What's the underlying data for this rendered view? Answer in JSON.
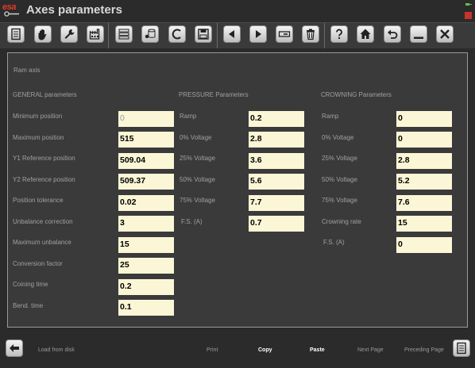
{
  "app": {
    "logo_text": "esa",
    "title": "Axes parameters"
  },
  "toolbar": {
    "buttons": [
      {
        "name": "document-icon"
      },
      {
        "name": "hand-icon"
      },
      {
        "name": "wrench-icon"
      },
      {
        "name": "factory-icon"
      },
      {
        "name": "stack-icon"
      },
      {
        "name": "database-icon"
      },
      {
        "name": "c-icon"
      },
      {
        "name": "save-icon"
      },
      {
        "name": "arrow-left-icon"
      },
      {
        "name": "arrow-right-icon"
      },
      {
        "name": "minus-box-icon"
      },
      {
        "name": "trash-icon"
      },
      {
        "name": "help-icon"
      },
      {
        "name": "home-icon"
      },
      {
        "name": "undo-icon"
      },
      {
        "name": "minimize-icon"
      },
      {
        "name": "close-icon"
      }
    ]
  },
  "panel": {
    "axis_label": "Ram axis",
    "general": {
      "header": "GENERAL parameters",
      "rows": [
        {
          "label": "Minimum position",
          "value": "0"
        },
        {
          "label": "Maximum position",
          "value": "515"
        },
        {
          "label": "Y1 Reference position",
          "value": "509.04"
        },
        {
          "label": "Y2 Reference position",
          "value": "509.37"
        },
        {
          "label": "Position tolerance",
          "value": "0.02"
        },
        {
          "label": "Unbalance correction",
          "value": "3"
        },
        {
          "label": "Maximum unbalance",
          "value": "15"
        },
        {
          "label": "Conversion factor",
          "value": "25"
        },
        {
          "label": "Coining time",
          "value": "0.2"
        },
        {
          "label": "Bend. time",
          "value": "0.1"
        }
      ]
    },
    "pressure": {
      "header": "PRESSURE Parameters",
      "rows": [
        {
          "label": "Ramp",
          "value": "0.2"
        },
        {
          "label": "0% Voltage",
          "value": "2.8"
        },
        {
          "label": "25% Voltage",
          "value": "3.6"
        },
        {
          "label": "50% Voltage",
          "value": "5.6"
        },
        {
          "label": "75% Voltage",
          "value": "7.7"
        },
        {
          "label": "F.S. (A)",
          "value": "0.7"
        }
      ]
    },
    "crowning": {
      "header": "CROWNING Parameters",
      "rows": [
        {
          "label": "Ramp",
          "value": "0"
        },
        {
          "label": "0% Voltage",
          "value": "0"
        },
        {
          "label": "25% Voltage",
          "value": "2.8"
        },
        {
          "label": "50% Voltage",
          "value": "5.2"
        },
        {
          "label": "75% Voltage",
          "value": "7.6"
        },
        {
          "label": "Crowning rate",
          "value": "15"
        },
        {
          "label": "F.S. (A)",
          "value": "0"
        }
      ]
    }
  },
  "bottom": {
    "load_from_disk": "Load from disk",
    "print": "Print",
    "copy": "Copy",
    "paste": "Paste",
    "next_page": "Next Page",
    "preceding_page": "Preceding Page"
  },
  "colors": {
    "background": "#2b2b2b",
    "panel": "#3a3a3a",
    "field": "#fbf7d6",
    "logo": "#e23a2a"
  }
}
